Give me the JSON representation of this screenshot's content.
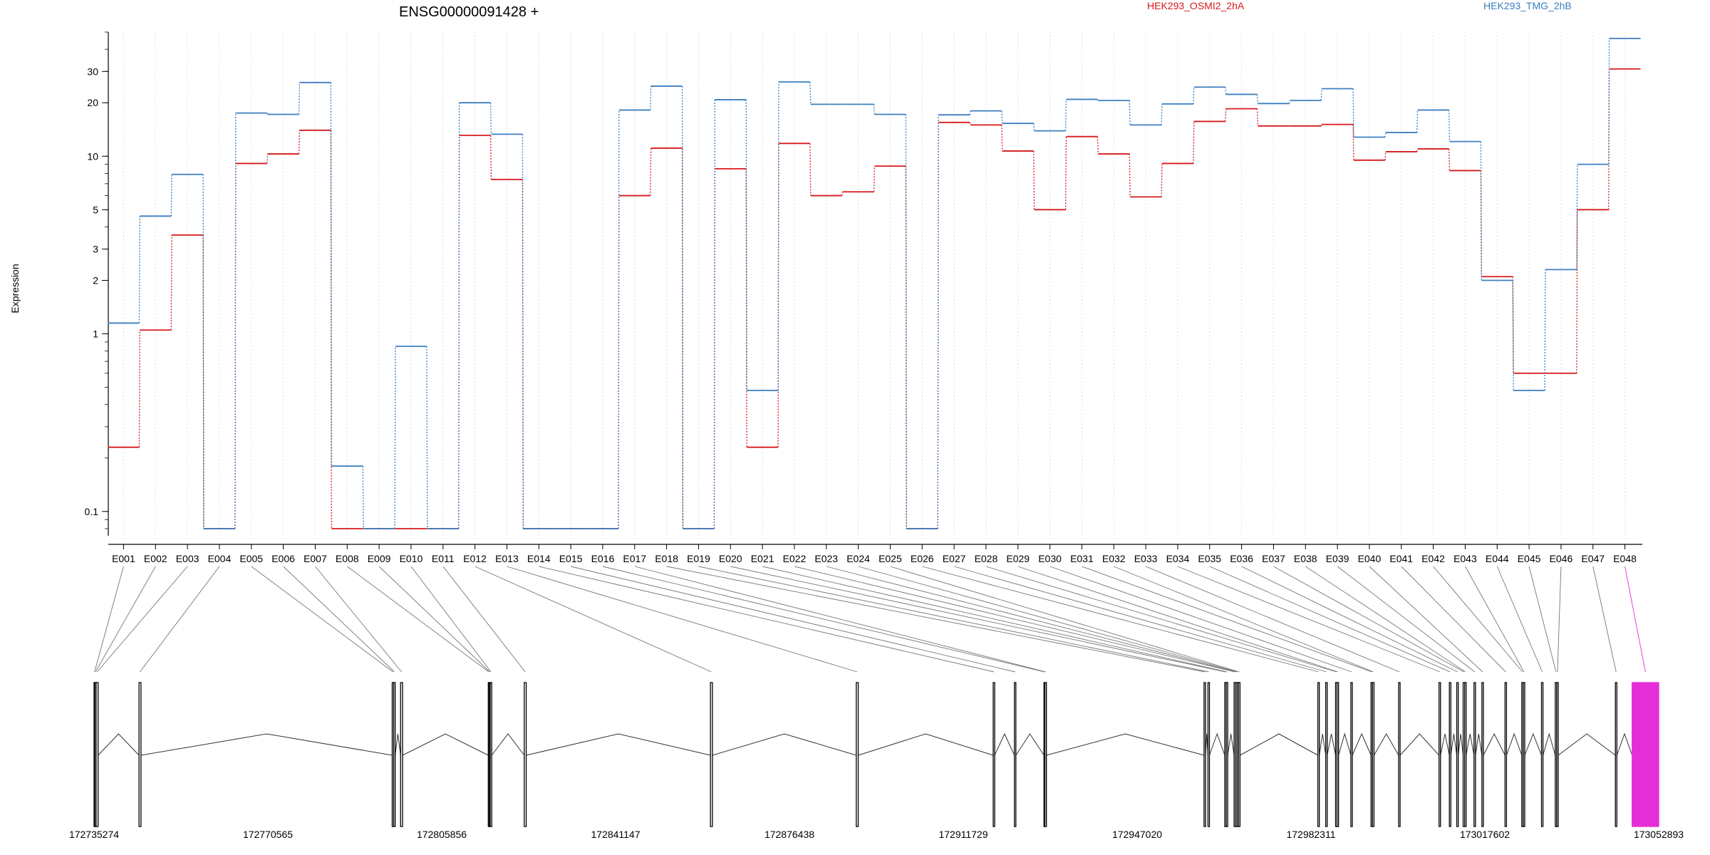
{
  "chart_data": {
    "type": "line",
    "title": "ENSG00000091428 +",
    "ylabel": "Expression",
    "y_scale": "log",
    "yticks": [
      0.1,
      1,
      2,
      3,
      5,
      10,
      20,
      30
    ],
    "ylim": [
      0.08,
      50
    ],
    "legend_placement": "top",
    "grid": "vertical dotted gridlines at each exon",
    "categories": [
      "E001",
      "E002",
      "E003",
      "E004",
      "E005",
      "E006",
      "E007",
      "E008",
      "E009",
      "E010",
      "E011",
      "E012",
      "E013",
      "E014",
      "E015",
      "E016",
      "E017",
      "E018",
      "E019",
      "E020",
      "E021",
      "E022",
      "E023",
      "E024",
      "E025",
      "E026",
      "E027",
      "E028",
      "E029",
      "E030",
      "E031",
      "E032",
      "E033",
      "E034",
      "E035",
      "E036",
      "E037",
      "E038",
      "E039",
      "E040",
      "E041",
      "E042",
      "E043",
      "E044",
      "E045",
      "E046",
      "E047",
      "E048"
    ],
    "series": [
      {
        "name": "HEK293_OSMI2_2hA",
        "color": "#d7191c",
        "values": [
          0.23,
          1.05,
          3.6,
          0.08,
          9.1,
          10.3,
          14.0,
          0.08,
          0.08,
          0.08,
          0.08,
          13.1,
          7.4,
          0.08,
          0.08,
          0.08,
          6.0,
          11.1,
          0.08,
          8.5,
          0.23,
          11.8,
          6.0,
          6.3,
          8.8,
          0.08,
          15.5,
          15.0,
          10.7,
          5.0,
          12.9,
          10.3,
          5.9,
          9.1,
          15.7,
          18.5,
          14.8,
          14.8,
          15.1,
          9.5,
          10.6,
          11.0,
          8.3,
          2.1,
          0.6,
          0.6,
          5.0,
          31.0
        ]
      },
      {
        "name": "HEK293_TMG_2hB",
        "color": "#3a7fc0",
        "values": [
          1.15,
          4.6,
          7.9,
          0.08,
          17.5,
          17.2,
          26.0,
          0.18,
          0.08,
          0.85,
          0.08,
          20.0,
          13.3,
          0.08,
          0.08,
          0.08,
          18.2,
          24.8,
          0.08,
          20.8,
          0.48,
          26.2,
          19.6,
          19.6,
          17.2,
          0.08,
          17.1,
          18.0,
          15.3,
          13.9,
          20.9,
          20.6,
          15.0,
          19.7,
          24.5,
          22.3,
          19.8,
          20.6,
          24.0,
          12.8,
          13.6,
          18.2,
          12.1,
          2.0,
          0.48,
          2.3,
          9.0,
          46.0
        ]
      }
    ],
    "genomic_axis": {
      "tick_labels": [
        "172735274",
        "172770565",
        "172805856",
        "172841147",
        "172876438",
        "172911729",
        "172947020",
        "172982311",
        "173017602",
        "173052893"
      ],
      "range": [
        172735274,
        173052893
      ]
    },
    "exons_highlighted": [
      "E048"
    ],
    "highlight_color": "#e52ed8",
    "exon_coordinates": [
      {
        "id": "E001",
        "start": 172735274,
        "end": 172735450
      },
      {
        "id": "E002",
        "start": 172735450,
        "end": 172735700
      },
      {
        "id": "E003",
        "start": 172735700,
        "end": 172736100
      },
      {
        "id": "E004",
        "start": 172744400,
        "end": 172744800
      },
      {
        "id": "E005",
        "start": 172795800,
        "end": 172796100
      },
      {
        "id": "E006",
        "start": 172796100,
        "end": 172796400
      },
      {
        "id": "E007",
        "start": 172797500,
        "end": 172797900
      },
      {
        "id": "E008",
        "start": 172815300,
        "end": 172815500
      },
      {
        "id": "E009",
        "start": 172815500,
        "end": 172815700
      },
      {
        "id": "E010",
        "start": 172815700,
        "end": 172816000
      },
      {
        "id": "E011",
        "start": 172822600,
        "end": 172823000
      },
      {
        "id": "E012",
        "start": 172860400,
        "end": 172860800
      },
      {
        "id": "E013",
        "start": 172890000,
        "end": 172890400
      },
      {
        "id": "E014",
        "start": 172917800,
        "end": 172918100
      },
      {
        "id": "E015",
        "start": 172922100,
        "end": 172922400
      },
      {
        "id": "E016",
        "start": 172928100,
        "end": 172928300
      },
      {
        "id": "E017",
        "start": 172928300,
        "end": 172928600
      },
      {
        "id": "E018",
        "start": 172960600,
        "end": 172960900
      },
      {
        "id": "E019",
        "start": 172961400,
        "end": 172961700
      },
      {
        "id": "E020",
        "start": 172964800,
        "end": 172965100
      },
      {
        "id": "E021",
        "start": 172965100,
        "end": 172965400
      },
      {
        "id": "E022",
        "start": 172966700,
        "end": 172967000
      },
      {
        "id": "E023",
        "start": 172967000,
        "end": 172967300
      },
      {
        "id": "E024",
        "start": 172967300,
        "end": 172967600
      },
      {
        "id": "E025",
        "start": 172967600,
        "end": 172967900
      },
      {
        "id": "E026",
        "start": 172983700,
        "end": 172984000
      },
      {
        "id": "E027",
        "start": 172985300,
        "end": 172985600
      },
      {
        "id": "E028",
        "start": 172987300,
        "end": 172987600
      },
      {
        "id": "E029",
        "start": 172987600,
        "end": 172987900
      },
      {
        "id": "E030",
        "start": 172990400,
        "end": 172990700
      },
      {
        "id": "E031",
        "start": 172994500,
        "end": 172994800
      },
      {
        "id": "E032",
        "start": 172994800,
        "end": 172995100
      },
      {
        "id": "E033",
        "start": 173000100,
        "end": 173000400
      },
      {
        "id": "E034",
        "start": 173008300,
        "end": 173008600
      },
      {
        "id": "E035",
        "start": 173010400,
        "end": 173010700
      },
      {
        "id": "E036",
        "start": 173011900,
        "end": 173012200
      },
      {
        "id": "E037",
        "start": 173013200,
        "end": 173013500
      },
      {
        "id": "E038",
        "start": 173013500,
        "end": 173013800
      },
      {
        "id": "E039",
        "start": 173015400,
        "end": 173015700
      },
      {
        "id": "E040",
        "start": 173017000,
        "end": 173017300
      },
      {
        "id": "E041",
        "start": 173021700,
        "end": 173022000
      },
      {
        "id": "E042",
        "start": 173025100,
        "end": 173025400
      },
      {
        "id": "E043",
        "start": 173025400,
        "end": 173025700
      },
      {
        "id": "E044",
        "start": 173029100,
        "end": 173029400
      },
      {
        "id": "E045",
        "start": 173031900,
        "end": 173032200
      },
      {
        "id": "E046",
        "start": 173032200,
        "end": 173032500
      },
      {
        "id": "E047",
        "start": 173044100,
        "end": 173044400
      },
      {
        "id": "E048",
        "start": 173047500,
        "end": 173052893
      }
    ]
  }
}
